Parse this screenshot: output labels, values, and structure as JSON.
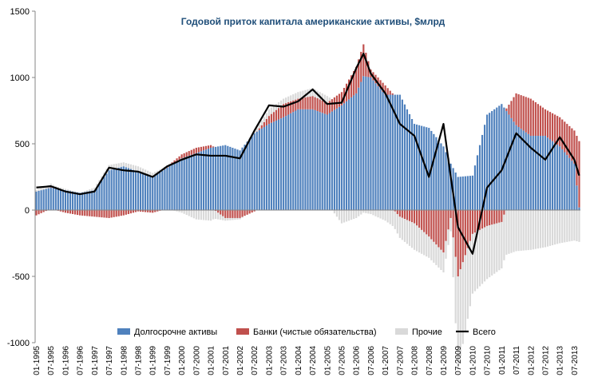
{
  "chart_data": {
    "type": "bar",
    "title": "Годовой приток капитала американские активы, $млрд",
    "xlabel": "",
    "ylabel": "",
    "ylim": [
      -1000,
      1500
    ],
    "yticks": [
      -1000,
      -500,
      0,
      500,
      1000,
      1500
    ],
    "stacked": true,
    "grid": false,
    "legend_position": "bottom",
    "x_start": "1995-01",
    "x_end": "2013-09",
    "x_ticks": [
      "01-1995",
      "07-1995",
      "01-1996",
      "07-1996",
      "01-1997",
      "07-1997",
      "01-1998",
      "07-1998",
      "01-1999",
      "07-1999",
      "01-2000",
      "07-2000",
      "01-2001",
      "07-2001",
      "01-2002",
      "07-2002",
      "01-2003",
      "07-2003",
      "01-2004",
      "07-2004",
      "01-2005",
      "07-2005",
      "01-2006",
      "07-2006",
      "01-2007",
      "07-2007",
      "01-2008",
      "07-2008",
      "01-2009",
      "07-2009",
      "01-2010",
      "07-2010",
      "01-2011",
      "07-2011",
      "01-2012",
      "07-2012",
      "01-2013",
      "07-2013"
    ],
    "anchors": [
      "1995-01",
      "1995-07",
      "1996-01",
      "1996-07",
      "1997-01",
      "1997-07",
      "1998-01",
      "1998-07",
      "1999-01",
      "1999-07",
      "2000-01",
      "2000-07",
      "2001-01",
      "2001-07",
      "2002-01",
      "2002-07",
      "2003-01",
      "2003-07",
      "2004-01",
      "2004-07",
      "2005-01",
      "2005-07",
      "2006-01",
      "2006-04",
      "2006-07",
      "2007-01",
      "2007-07",
      "2008-01",
      "2008-07",
      "2009-01",
      "2009-04",
      "2009-07",
      "2010-01",
      "2010-07",
      "2011-01",
      "2011-07",
      "2012-01",
      "2012-07",
      "2013-01",
      "2013-07",
      "2013-09"
    ],
    "series": [
      {
        "name": "Долгосрочне активы",
        "color": "#4f81bd",
        "values": [
          140,
          170,
          150,
          130,
          150,
          300,
          330,
          290,
          250,
          320,
          390,
          430,
          470,
          490,
          450,
          580,
          650,
          700,
          760,
          760,
          720,
          790,
          880,
          1010,
          1000,
          870,
          870,
          650,
          620,
          480,
          350,
          250,
          260,
          720,
          800,
          640,
          560,
          560,
          480,
          350,
          20
        ]
      },
      {
        "name": "Банки (чистые обязательства)",
        "color": "#c0504d",
        "values": [
          -40,
          10,
          -20,
          -40,
          -50,
          -60,
          -40,
          -10,
          -20,
          10,
          30,
          40,
          20,
          -60,
          -60,
          -10,
          60,
          100,
          80,
          100,
          90,
          100,
          200,
          240,
          60,
          70,
          -50,
          -100,
          -200,
          -320,
          -60,
          -500,
          -180,
          -120,
          -90,
          240,
          280,
          200,
          220,
          250,
          500
        ]
      },
      {
        "name": "Прочие",
        "color": "#d9d9d9",
        "values": [
          10,
          20,
          10,
          0,
          20,
          40,
          30,
          40,
          30,
          10,
          -20,
          -70,
          -80,
          -20,
          -10,
          20,
          50,
          40,
          50,
          60,
          50,
          -100,
          -60,
          -20,
          -30,
          -80,
          -160,
          -200,
          -160,
          -150,
          -100,
          -700,
          -450,
          -400,
          -350,
          -310,
          -300,
          -280,
          -250,
          -230,
          -240
        ]
      },
      {
        "name": "Всего",
        "color": "#000000",
        "type": "line",
        "values": [
          170,
          180,
          140,
          120,
          140,
          320,
          300,
          290,
          250,
          330,
          380,
          420,
          410,
          410,
          390,
          600,
          790,
          780,
          820,
          910,
          800,
          810,
          1070,
          1180,
          1030,
          880,
          650,
          560,
          250,
          650,
          250,
          -130,
          -330,
          170,
          300,
          580,
          470,
          380,
          550,
          380,
          260
        ]
      }
    ]
  },
  "legend": {
    "items": [
      {
        "label": "Долгосрочне активы",
        "color": "#4f81bd",
        "kind": "box"
      },
      {
        "label": "Банки (чистые обязательства)",
        "color": "#c0504d",
        "kind": "box"
      },
      {
        "label": "Прочие",
        "color": "#d9d9d9",
        "kind": "box"
      },
      {
        "label": "Всего",
        "color": "#000000",
        "kind": "line"
      }
    ]
  }
}
